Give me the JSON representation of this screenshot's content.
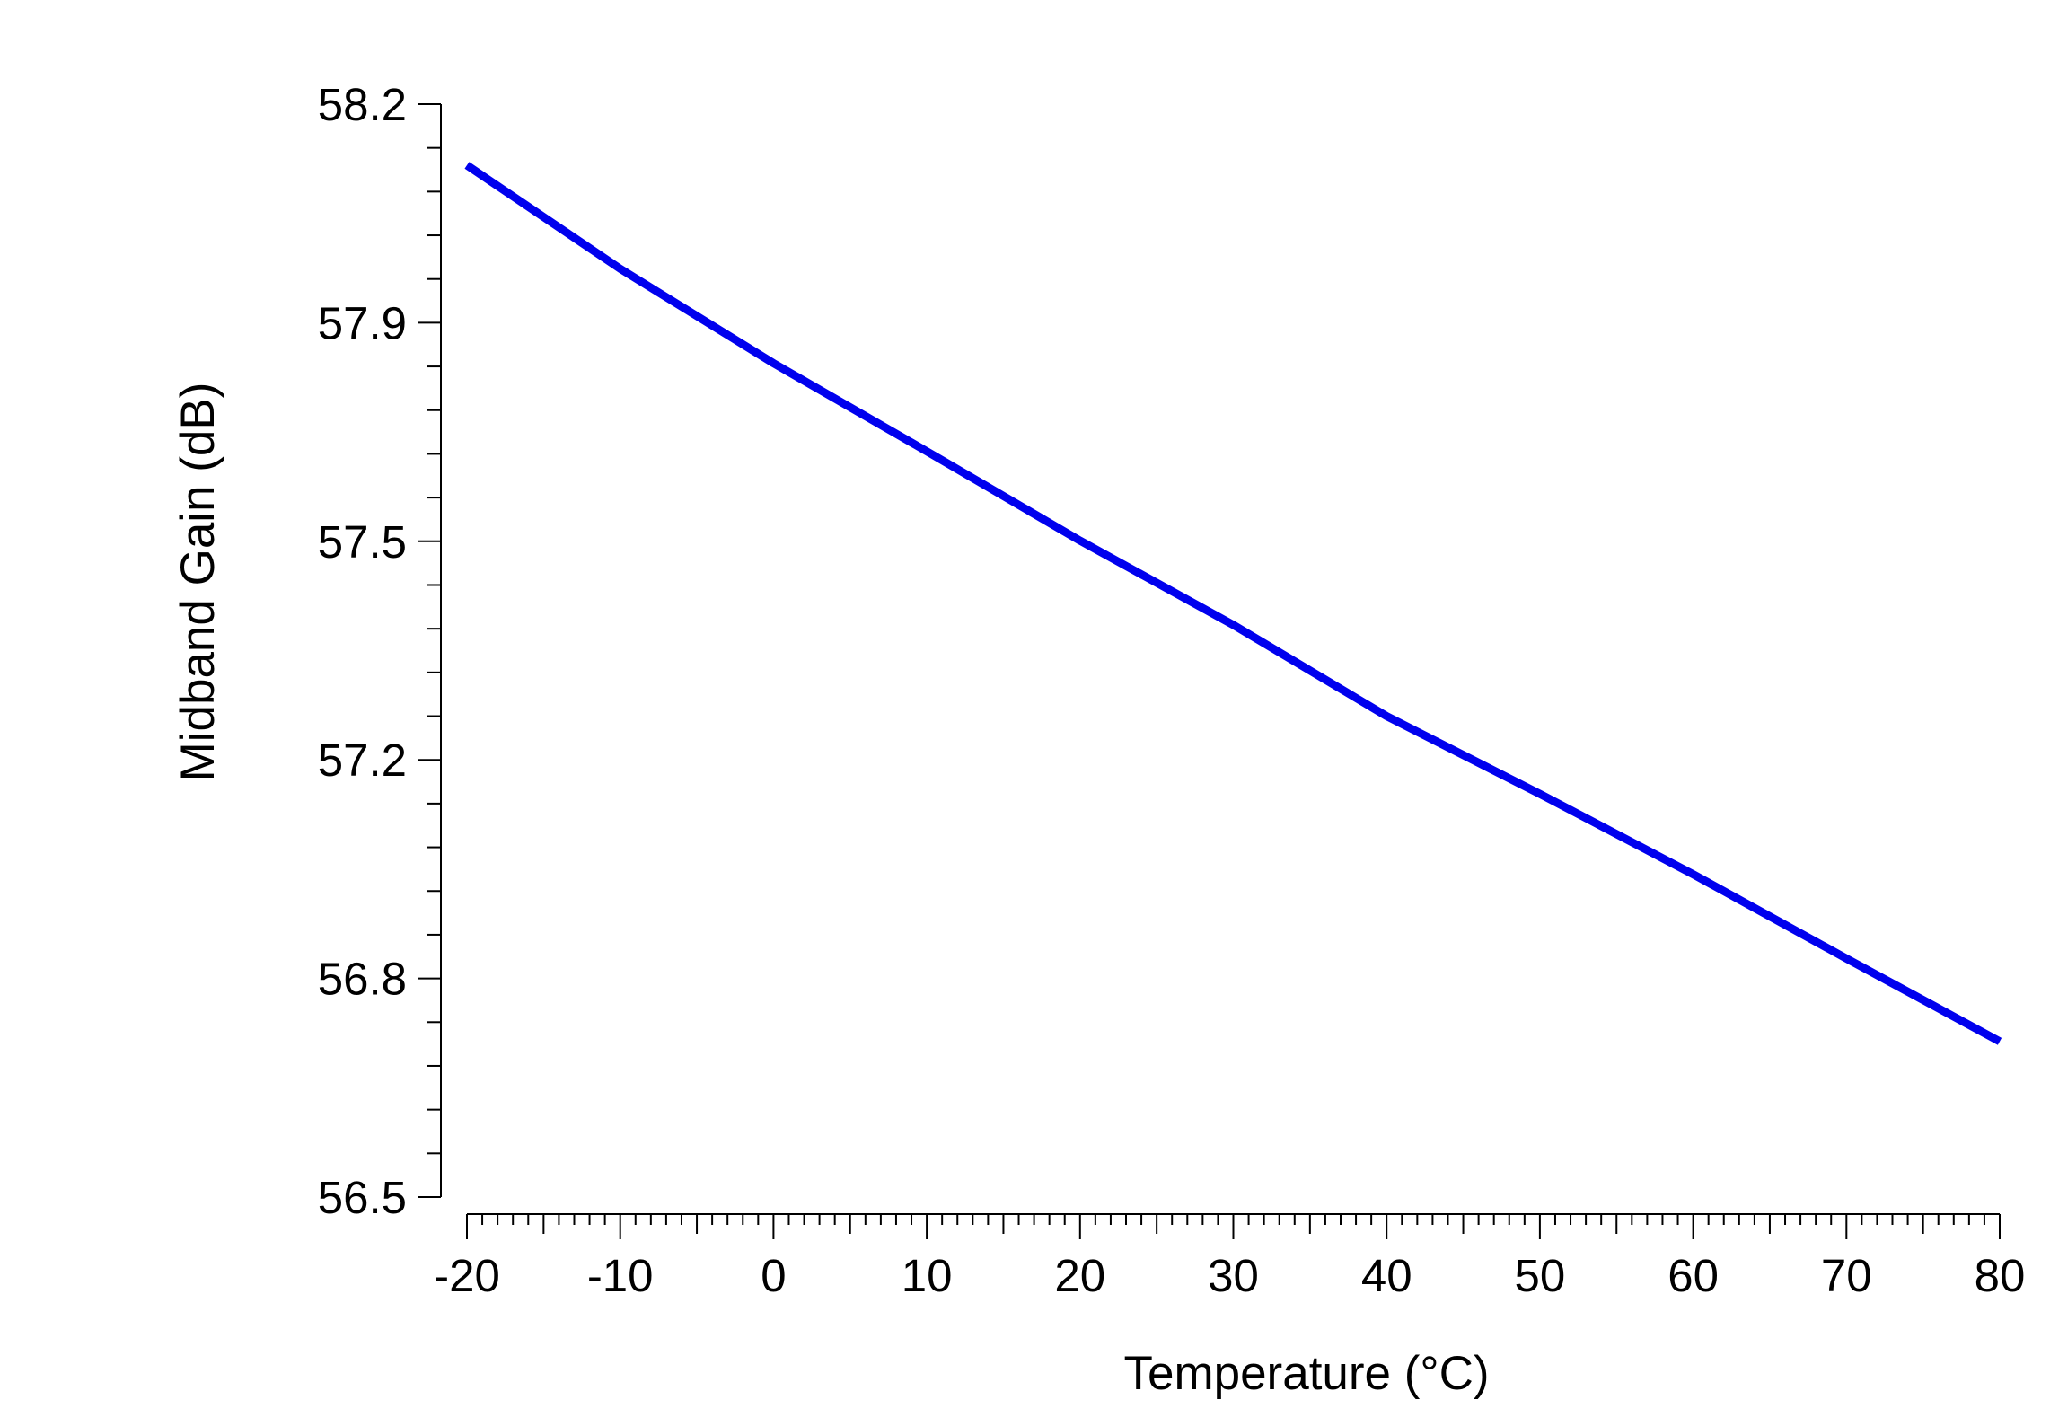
{
  "chart_data": {
    "type": "line",
    "title": "",
    "xlabel": "Temperature (°C)",
    "ylabel": "Midband Gain (dB)",
    "xlim": [
      -20,
      80
    ],
    "ylim": [
      56.5,
      58.2
    ],
    "xticks": [
      -20,
      -10,
      0,
      10,
      20,
      30,
      40,
      50,
      60,
      70,
      80
    ],
    "xtick_labels": [
      "-20",
      "-10",
      "0",
      "10",
      "20",
      "30",
      "40",
      "50",
      "60",
      "70",
      "80"
    ],
    "yticks": [
      56.5,
      56.8,
      57.2,
      57.5,
      57.9,
      58.2
    ],
    "ytick_labels": [
      "56.5",
      "56.8",
      "57.2",
      "57.5",
      "57.9",
      "58.2"
    ],
    "grid": false,
    "series": [
      {
        "name": "Midband Gain",
        "color": "#0000ee",
        "x": [
          -20,
          -10,
          0,
          10,
          20,
          30,
          40,
          50,
          60,
          70,
          80
        ],
        "values": [
          58.105,
          57.944,
          57.797,
          57.66,
          57.521,
          57.39,
          57.248,
          57.127,
          57.002,
          56.871,
          56.742
        ]
      }
    ]
  }
}
